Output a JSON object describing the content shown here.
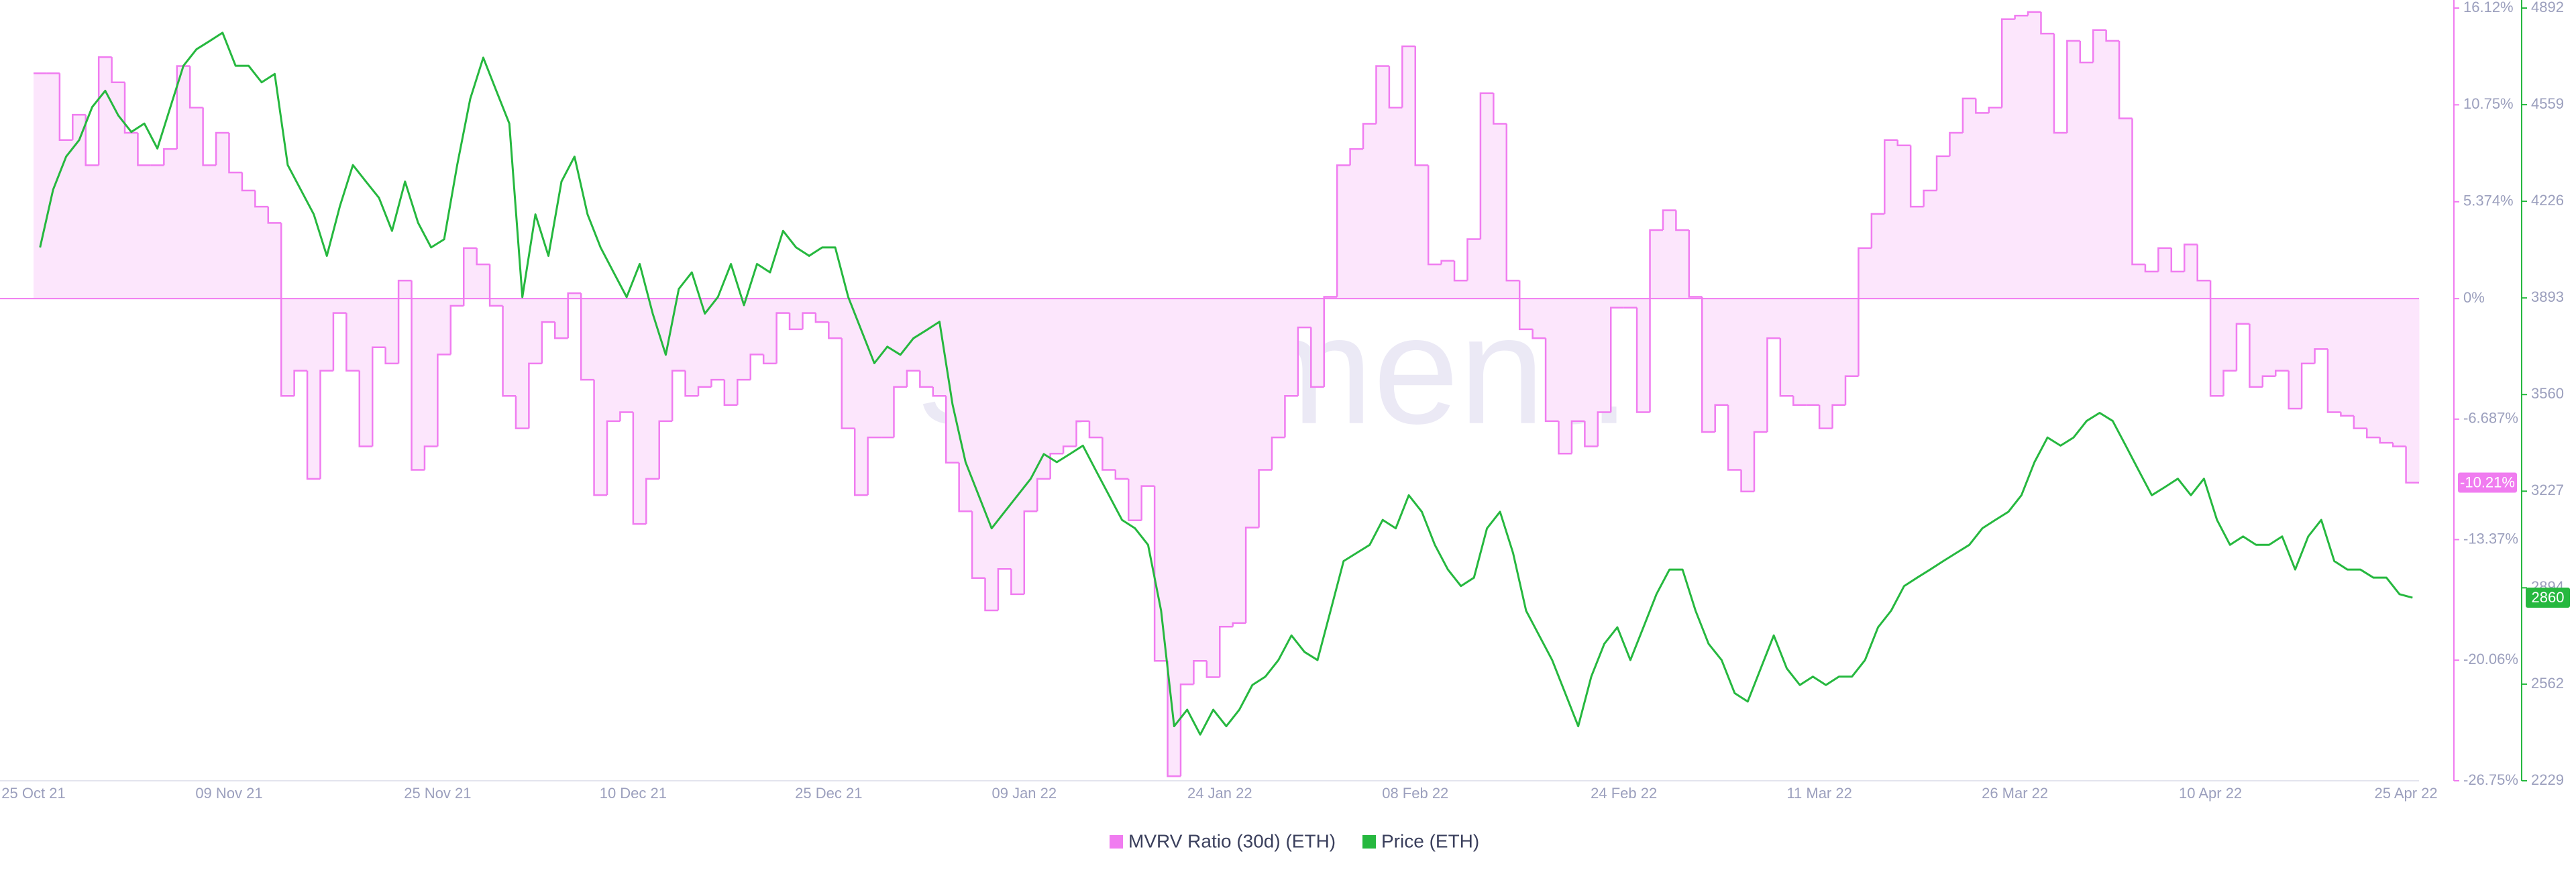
{
  "chart_data": {
    "type": "line",
    "watermark": "santiment.",
    "x": [
      "25 Oct 21",
      "26 Oct 21",
      "27 Oct 21",
      "28 Oct 21",
      "29 Oct 21",
      "30 Oct 21",
      "31 Oct 21",
      "01 Nov 21",
      "02 Nov 21",
      "03 Nov 21",
      "04 Nov 21",
      "05 Nov 21",
      "06 Nov 21",
      "07 Nov 21",
      "08 Nov 21",
      "09 Nov 21",
      "10 Nov 21",
      "11 Nov 21",
      "12 Nov 21",
      "13 Nov 21",
      "14 Nov 21",
      "15 Nov 21",
      "16 Nov 21",
      "17 Nov 21",
      "18 Nov 21",
      "19 Nov 21",
      "20 Nov 21",
      "21 Nov 21",
      "22 Nov 21",
      "23 Nov 21",
      "24 Nov 21",
      "25 Nov 21",
      "26 Nov 21",
      "27 Nov 21",
      "28 Nov 21",
      "29 Nov 21",
      "30 Nov 21",
      "01 Dec 21",
      "02 Dec 21",
      "03 Dec 21",
      "04 Dec 21",
      "05 Dec 21",
      "06 Dec 21",
      "07 Dec 21",
      "08 Dec 21",
      "09 Dec 21",
      "10 Dec 21",
      "11 Dec 21",
      "12 Dec 21",
      "13 Dec 21",
      "14 Dec 21",
      "15 Dec 21",
      "16 Dec 21",
      "17 Dec 21",
      "18 Dec 21",
      "19 Dec 21",
      "20 Dec 21",
      "21 Dec 21",
      "22 Dec 21",
      "23 Dec 21",
      "24 Dec 21",
      "25 Dec 21",
      "26 Dec 21",
      "27 Dec 21",
      "28 Dec 21",
      "29 Dec 21",
      "30 Dec 21",
      "31 Dec 21",
      "01 Jan 22",
      "02 Jan 22",
      "03 Jan 22",
      "04 Jan 22",
      "05 Jan 22",
      "06 Jan 22",
      "07 Jan 22",
      "08 Jan 22",
      "09 Jan 22",
      "10 Jan 22",
      "11 Jan 22",
      "12 Jan 22",
      "13 Jan 22",
      "14 Jan 22",
      "15 Jan 22",
      "16 Jan 22",
      "17 Jan 22",
      "18 Jan 22",
      "19 Jan 22",
      "20 Jan 22",
      "21 Jan 22",
      "22 Jan 22",
      "23 Jan 22",
      "24 Jan 22",
      "25 Jan 22",
      "26 Jan 22",
      "27 Jan 22",
      "28 Jan 22",
      "29 Jan 22",
      "30 Jan 22",
      "31 Jan 22",
      "01 Feb 22",
      "02 Feb 22",
      "03 Feb 22",
      "04 Feb 22",
      "05 Feb 22",
      "06 Feb 22",
      "07 Feb 22",
      "08 Feb 22",
      "09 Feb 22",
      "10 Feb 22",
      "11 Feb 22",
      "12 Feb 22",
      "13 Feb 22",
      "14 Feb 22",
      "15 Feb 22",
      "16 Feb 22",
      "17 Feb 22",
      "18 Feb 22",
      "19 Feb 22",
      "20 Feb 22",
      "21 Feb 22",
      "22 Feb 22",
      "23 Feb 22",
      "24 Feb 22",
      "25 Feb 22",
      "26 Feb 22",
      "27 Feb 22",
      "28 Feb 22",
      "01 Mar 22",
      "02 Mar 22",
      "03 Mar 22",
      "04 Mar 22",
      "05 Mar 22",
      "06 Mar 22",
      "07 Mar 22",
      "08 Mar 22",
      "09 Mar 22",
      "10 Mar 22",
      "11 Mar 22",
      "12 Mar 22",
      "13 Mar 22",
      "14 Mar 22",
      "15 Mar 22",
      "16 Mar 22",
      "17 Mar 22",
      "18 Mar 22",
      "19 Mar 22",
      "20 Mar 22",
      "21 Mar 22",
      "22 Mar 22",
      "23 Mar 22",
      "24 Mar 22",
      "25 Mar 22",
      "26 Mar 22",
      "27 Mar 22",
      "28 Mar 22",
      "29 Mar 22",
      "30 Mar 22",
      "31 Mar 22",
      "01 Apr 22",
      "02 Apr 22",
      "03 Apr 22",
      "04 Apr 22",
      "05 Apr 22",
      "06 Apr 22",
      "07 Apr 22",
      "08 Apr 22",
      "09 Apr 22",
      "10 Apr 22",
      "11 Apr 22",
      "12 Apr 22",
      "13 Apr 22",
      "14 Apr 22",
      "15 Apr 22",
      "16 Apr 22",
      "17 Apr 22",
      "18 Apr 22",
      "19 Apr 22",
      "20 Apr 22",
      "21 Apr 22",
      "22 Apr 22",
      "23 Apr 22",
      "24 Apr 22",
      "25 Apr 22"
    ],
    "xticks": [
      "25 Oct 21",
      "09 Nov 21",
      "25 Nov 21",
      "10 Dec 21",
      "25 Dec 21",
      "09 Jan 22",
      "24 Jan 22",
      "08 Feb 22",
      "24 Feb 22",
      "11 Mar 22",
      "26 Mar 22",
      "10 Apr 22",
      "25 Apr 22"
    ],
    "ylim": [
      -26.75,
      16.12
    ],
    "yticks": [
      {
        "value": 16.12,
        "label": "16.12%"
      },
      {
        "value": 10.75,
        "label": "10.75%"
      },
      {
        "value": 5.374,
        "label": "5.374%"
      },
      {
        "value": 0,
        "label": "0%"
      },
      {
        "value": -6.687,
        "label": "-6.687%"
      },
      {
        "value": -13.37,
        "label": "-13.37%"
      },
      {
        "value": -20.06,
        "label": "-20.06%"
      },
      {
        "value": -26.75,
        "label": "-26.75%"
      }
    ],
    "y2lim": [
      2229,
      4892
    ],
    "y2ticks": [
      4892,
      4559,
      4226,
      3893,
      3560,
      3227,
      2894,
      2562,
      2229
    ],
    "series": [
      {
        "name": "MVRV Ratio (30d) (ETH)",
        "style": "step-area",
        "axis": "y",
        "color": "#f07cf0",
        "fill": "#fce6fc",
        "last_label": "-10.21%",
        "values": [
          12.5,
          12.5,
          8.8,
          10.2,
          7.4,
          13.4,
          12.0,
          9.2,
          7.4,
          7.4,
          8.3,
          12.9,
          10.6,
          7.4,
          9.2,
          7.0,
          6.0,
          5.1,
          4.2,
          -5.4,
          -4.0,
          -10.0,
          -4.0,
          -0.8,
          -4.0,
          -8.2,
          -2.7,
          -3.6,
          1.0,
          -9.5,
          -8.2,
          -3.1,
          -0.4,
          2.8,
          1.9,
          -0.4,
          -5.4,
          -7.2,
          -3.6,
          -1.3,
          -2.2,
          0.3,
          -4.5,
          -10.9,
          -6.8,
          -6.3,
          -12.5,
          -10.0,
          -6.8,
          -4.0,
          -5.4,
          -4.9,
          -4.5,
          -5.9,
          -4.5,
          -3.1,
          -3.6,
          -0.8,
          -1.7,
          -0.8,
          -1.3,
          -2.2,
          -7.2,
          -10.9,
          -7.7,
          -7.7,
          -4.9,
          -4.0,
          -4.9,
          -5.4,
          -9.1,
          -11.8,
          -15.5,
          -17.3,
          -15.0,
          -16.4,
          -11.8,
          -10.0,
          -8.6,
          -8.2,
          -6.8,
          -7.7,
          -9.5,
          -10.0,
          -12.3,
          -10.4,
          -20.1,
          -26.5,
          -21.4,
          -20.1,
          -21.0,
          -18.2,
          -18.0,
          -12.7,
          -9.5,
          -7.7,
          -5.4,
          -1.6,
          -4.9,
          0.1,
          7.4,
          8.3,
          9.7,
          12.9,
          10.6,
          14.0,
          7.4,
          1.9,
          2.1,
          1.0,
          3.3,
          11.4,
          9.7,
          1.0,
          -1.7,
          -2.2,
          -6.8,
          -8.6,
          -6.8,
          -8.2,
          -6.3,
          -0.5,
          -0.5,
          -6.3,
          3.8,
          4.9,
          3.8,
          0.1,
          -7.4,
          -5.9,
          -9.5,
          -10.7,
          -7.4,
          -2.2,
          -5.4,
          -5.9,
          -5.9,
          -7.2,
          -5.9,
          -4.3,
          2.8,
          4.7,
          8.8,
          8.5,
          5.1,
          6.0,
          7.9,
          9.2,
          11.1,
          10.3,
          10.6,
          15.5,
          15.7,
          15.9,
          14.7,
          9.2,
          14.3,
          13.1,
          14.9,
          14.3,
          10.0,
          1.9,
          1.5,
          2.8,
          1.5,
          3.0,
          1.0,
          -5.4,
          -4.0,
          -1.4,
          -4.9,
          -4.3,
          -4.0,
          -6.1,
          -3.6,
          -2.8,
          -6.3,
          -6.5,
          -7.2,
          -7.7,
          -8.0,
          -8.2,
          -10.21
        ]
      },
      {
        "name": "Price (ETH)",
        "style": "line",
        "axis": "y2",
        "color": "#26b83f",
        "last_label": "2860",
        "values": [
          4067,
          4266,
          4380,
          4437,
          4551,
          4607,
          4522,
          4465,
          4494,
          4408,
          4551,
          4693,
          4750,
          4778,
          4807,
          4693,
          4693,
          4636,
          4665,
          4351,
          4266,
          4181,
          4038,
          4209,
          4351,
          4294,
          4238,
          4124,
          4294,
          4152,
          4067,
          4095,
          4351,
          4579,
          4721,
          4607,
          4494,
          3896,
          4181,
          4038,
          4294,
          4380,
          4181,
          4067,
          3981,
          3896,
          4010,
          3839,
          3697,
          3924,
          3981,
          3839,
          3896,
          4010,
          3868,
          4010,
          3981,
          4124,
          4067,
          4038,
          4067,
          4067,
          3896,
          3782,
          3668,
          3725,
          3697,
          3754,
          3782,
          3811,
          3526,
          3327,
          3213,
          3099,
          3156,
          3213,
          3270,
          3355,
          3327,
          3355,
          3384,
          3298,
          3213,
          3128,
          3099,
          3042,
          2815,
          2417,
          2474,
          2388,
          2474,
          2417,
          2474,
          2559,
          2588,
          2645,
          2730,
          2673,
          2645,
          2815,
          2986,
          3014,
          3042,
          3128,
          3099,
          3213,
          3156,
          3042,
          2957,
          2900,
          2929,
          3099,
          3156,
          3014,
          2815,
          2730,
          2645,
          2531,
          2417,
          2588,
          2701,
          2758,
          2645,
          2758,
          2872,
          2957,
          2957,
          2815,
          2701,
          2645,
          2531,
          2502,
          2616,
          2730,
          2616,
          2559,
          2588,
          2559,
          2588,
          2588,
          2645,
          2758,
          2815,
          2900,
          2929,
          2957,
          2986,
          3014,
          3042,
          3099,
          3128,
          3156,
          3213,
          3327,
          3412,
          3384,
          3412,
          3469,
          3497,
          3469,
          3384,
          3298,
          3213,
          3241,
          3270,
          3213,
          3270,
          3128,
          3042,
          3071,
          3042,
          3042,
          3071,
          2957,
          3071,
          3128,
          2986,
          2957,
          2957,
          2929,
          2929,
          2872,
          2860
        ]
      }
    ]
  }
}
